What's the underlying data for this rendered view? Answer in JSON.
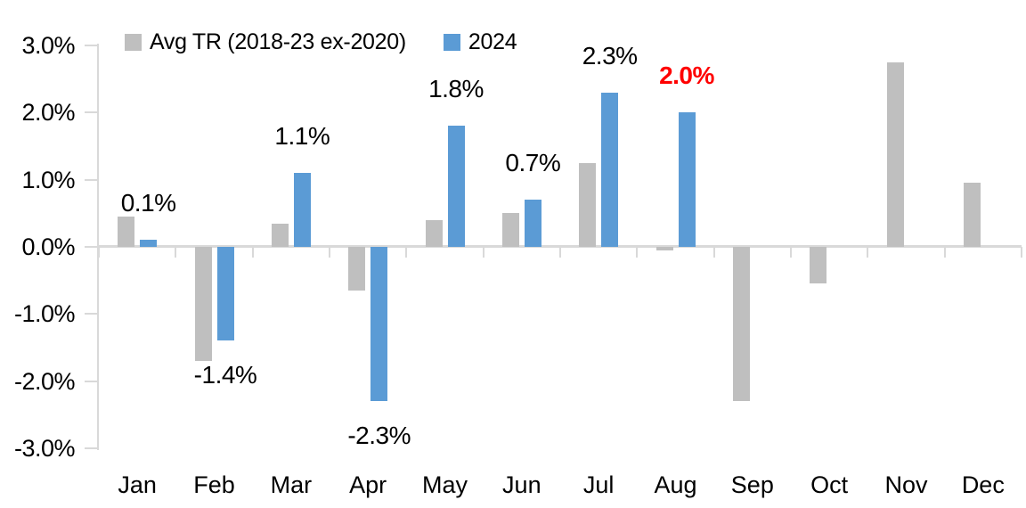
{
  "chart_data": {
    "type": "bar",
    "title": "",
    "categories": [
      "Jan",
      "Feb",
      "Mar",
      "Apr",
      "May",
      "Jun",
      "Jul",
      "Aug",
      "Sep",
      "Oct",
      "Nov",
      "Dec"
    ],
    "series": [
      {
        "name": "Avg TR (2018-23 ex-2020)",
        "color": "#BFBFBF",
        "values": [
          0.45,
          -1.7,
          0.35,
          -0.65,
          0.4,
          0.5,
          1.25,
          -0.05,
          -2.3,
          -0.55,
          2.75,
          0.95
        ]
      },
      {
        "name": "2024",
        "color": "#5B9BD5",
        "values": [
          0.1,
          -1.4,
          1.1,
          -2.3,
          1.8,
          0.7,
          2.3,
          2.0,
          null,
          null,
          null,
          null
        ]
      }
    ],
    "data_labels": [
      {
        "index": 0,
        "month": "Jan",
        "series": "2024",
        "text": "0.1%",
        "color": "#000000",
        "bold": false
      },
      {
        "index": 1,
        "month": "Feb",
        "series": "2024",
        "text": "-1.4%",
        "color": "#000000",
        "bold": false
      },
      {
        "index": 2,
        "month": "Mar",
        "series": "2024",
        "text": "1.1%",
        "color": "#000000",
        "bold": false
      },
      {
        "index": 3,
        "month": "Apr",
        "series": "2024",
        "text": "-2.3%",
        "color": "#000000",
        "bold": false
      },
      {
        "index": 4,
        "month": "May",
        "series": "2024",
        "text": "1.8%",
        "color": "#000000",
        "bold": false
      },
      {
        "index": 5,
        "month": "Jun",
        "series": "2024",
        "text": "0.7%",
        "color": "#000000",
        "bold": false
      },
      {
        "index": 6,
        "month": "Jul",
        "series": "2024",
        "text": "2.3%",
        "color": "#000000",
        "bold": false
      },
      {
        "index": 7,
        "month": "Aug",
        "series": "2024",
        "text": "2.0%",
        "color": "#FF0000",
        "bold": true
      }
    ],
    "y_axis": {
      "tick_labels": [
        "3.0%",
        "2.0%",
        "1.0%",
        "0.0%",
        "-1.0%",
        "-2.0%",
        "-3.0%"
      ],
      "tick_values": [
        3.0,
        2.0,
        1.0,
        0.0,
        -1.0,
        -2.0,
        -3.0
      ],
      "min": -3.0,
      "max": 3.0,
      "unit": "%"
    },
    "grid": false,
    "legend_position": "top"
  },
  "colors": {
    "axis_line": "#D9D9D9",
    "bar_gray": "#BFBFBF",
    "bar_blue": "#5B9BD5",
    "label_default": "#000000",
    "label_highlight": "#FF0000",
    "background": "#FFFFFF"
  }
}
